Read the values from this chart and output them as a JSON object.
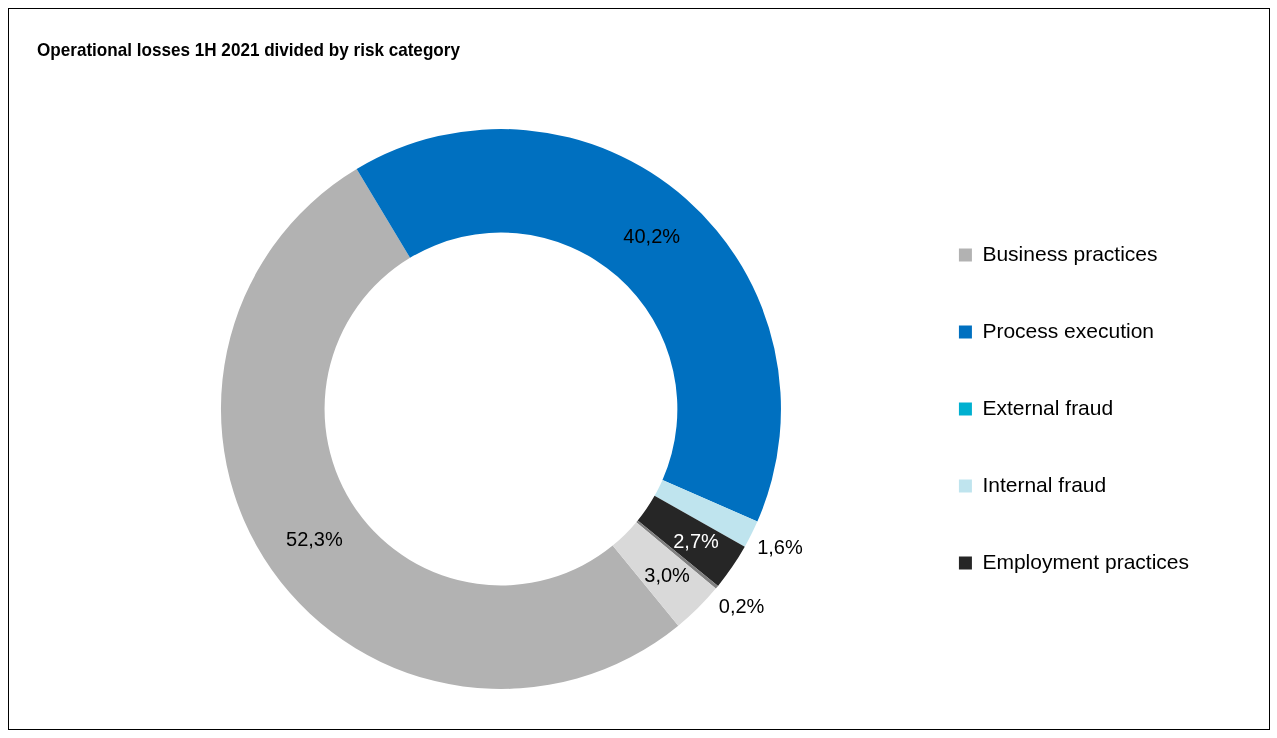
{
  "chart_data": {
    "type": "donut",
    "title": "Operational losses 1H 2021 divided by risk category",
    "categories": [
      "Business practices",
      "Process execution",
      "External fraud",
      "Internal fraud",
      "Employment practices",
      null,
      null
    ],
    "values": [
      52.3,
      40.2,
      0,
      1.6,
      2.7,
      0.2,
      3.0
    ],
    "colors": [
      "#b2b2b2",
      "#0070c0",
      "#00b0d0",
      "#bfe4ee",
      "#262626",
      "#7f7f7f",
      "#d9d9d9"
    ],
    "value_labels": [
      "52,3%",
      "40,2%",
      null,
      "1,6%",
      "2,7%",
      "0,2%",
      "3,0%"
    ],
    "legend": "right"
  }
}
